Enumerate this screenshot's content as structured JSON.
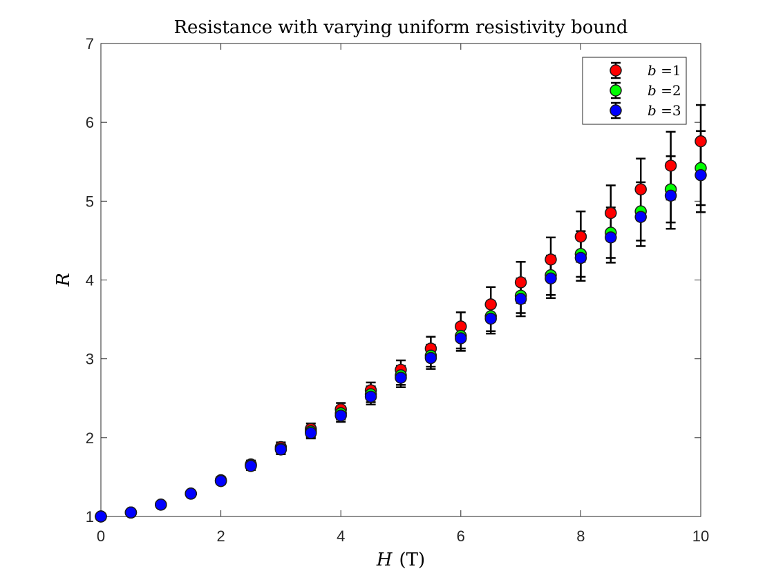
{
  "chart_data": {
    "type": "scatter",
    "title": "Resistance with varying uniform resistivity bound",
    "xlabel_italic": "H",
    "xlabel_unit": "(T)",
    "ylabel": "R",
    "xlim": [
      0,
      10
    ],
    "ylim": [
      1,
      7
    ],
    "xticks": [
      0,
      2,
      4,
      6,
      8,
      10
    ],
    "yticks": [
      1,
      2,
      3,
      4,
      5,
      6,
      7
    ],
    "grid": false,
    "legend_position": "top-right",
    "x": [
      0,
      0.5,
      1,
      1.5,
      2,
      2.5,
      3,
      3.5,
      4,
      4.5,
      5,
      5.5,
      6,
      6.5,
      7,
      7.5,
      8,
      8.5,
      9,
      9.5,
      10
    ],
    "series": [
      {
        "name": "b =1",
        "legend_italic": "b",
        "legend_rest": " =1",
        "color": "#ff0000",
        "values": [
          1.0,
          1.05,
          1.15,
          1.29,
          1.46,
          1.66,
          1.88,
          2.11,
          2.36,
          2.6,
          2.86,
          3.13,
          3.41,
          3.69,
          3.97,
          4.26,
          4.55,
          4.85,
          5.15,
          5.45,
          5.76
        ],
        "errors": [
          0.0,
          0.01,
          0.02,
          0.03,
          0.04,
          0.05,
          0.06,
          0.07,
          0.08,
          0.1,
          0.12,
          0.15,
          0.18,
          0.22,
          0.26,
          0.28,
          0.32,
          0.35,
          0.39,
          0.43,
          0.46
        ]
      },
      {
        "name": "b =2",
        "legend_italic": "b",
        "legend_rest": " =2",
        "color": "#00ff00",
        "values": [
          1.0,
          1.05,
          1.15,
          1.29,
          1.45,
          1.65,
          1.86,
          2.08,
          2.31,
          2.55,
          2.79,
          3.04,
          3.29,
          3.54,
          3.8,
          4.06,
          4.33,
          4.6,
          4.87,
          5.15,
          5.42
        ],
        "errors": [
          0.0,
          0.01,
          0.02,
          0.03,
          0.04,
          0.05,
          0.06,
          0.07,
          0.08,
          0.1,
          0.12,
          0.14,
          0.16,
          0.19,
          0.22,
          0.25,
          0.29,
          0.32,
          0.37,
          0.42,
          0.47
        ]
      },
      {
        "name": "b =3",
        "legend_italic": "b",
        "legend_rest": " =3",
        "color": "#0000ff",
        "values": [
          1.0,
          1.05,
          1.15,
          1.29,
          1.45,
          1.64,
          1.85,
          2.06,
          2.28,
          2.52,
          2.76,
          3.01,
          3.26,
          3.51,
          3.76,
          4.02,
          4.28,
          4.54,
          4.8,
          5.07,
          5.33
        ],
        "errors": [
          0.0,
          0.01,
          0.02,
          0.03,
          0.04,
          0.05,
          0.06,
          0.07,
          0.08,
          0.1,
          0.12,
          0.14,
          0.16,
          0.19,
          0.22,
          0.25,
          0.29,
          0.32,
          0.37,
          0.42,
          0.47
        ]
      }
    ]
  }
}
